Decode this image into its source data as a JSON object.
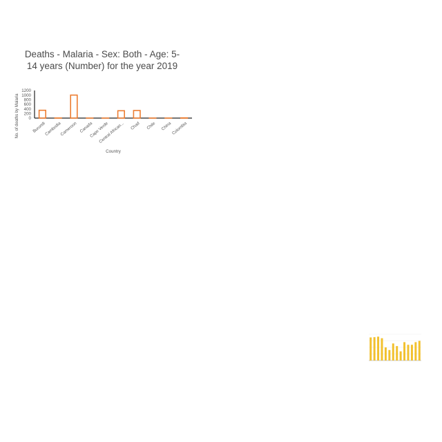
{
  "chart_data": [
    {
      "type": "bar",
      "title": "Deaths - Malaria - Sex: Both - Age: 5-14 years (Number) for the year 2019",
      "xlabel": "Country",
      "ylabel": "No. of deaths by Malaria",
      "categories": [
        "Burundi",
        "Cambodia",
        "Cameroon",
        "Canada",
        "Cape Verde",
        "Central African...",
        "Chad",
        "Chile",
        "China",
        "Colombia"
      ],
      "values": [
        340,
        5,
        1000,
        0,
        0,
        320,
        330,
        0,
        0,
        10
      ],
      "yticks": [
        0,
        200,
        400,
        600,
        800,
        1000,
        1200
      ],
      "ylim": [
        0,
        1200
      ],
      "bar_style": "outlined",
      "bar_color": "#ed7d31",
      "grid": false,
      "legend": "none"
    },
    {
      "type": "bar",
      "title": "",
      "xlabel": "",
      "ylabel": "",
      "categories": [
        "",
        "",
        "",
        "",
        "",
        "",
        "",
        "",
        "",
        "",
        "",
        "",
        "",
        ""
      ],
      "values": [
        0.88,
        0.89,
        0.91,
        0.85,
        0.5,
        0.4,
        0.65,
        0.55,
        0.35,
        0.7,
        0.6,
        0.6,
        0.7,
        0.75
      ],
      "ylim": [
        0,
        1
      ],
      "bar_style": "filled",
      "bar_color": "#f2c12e",
      "grid": true,
      "legend": "none"
    }
  ]
}
